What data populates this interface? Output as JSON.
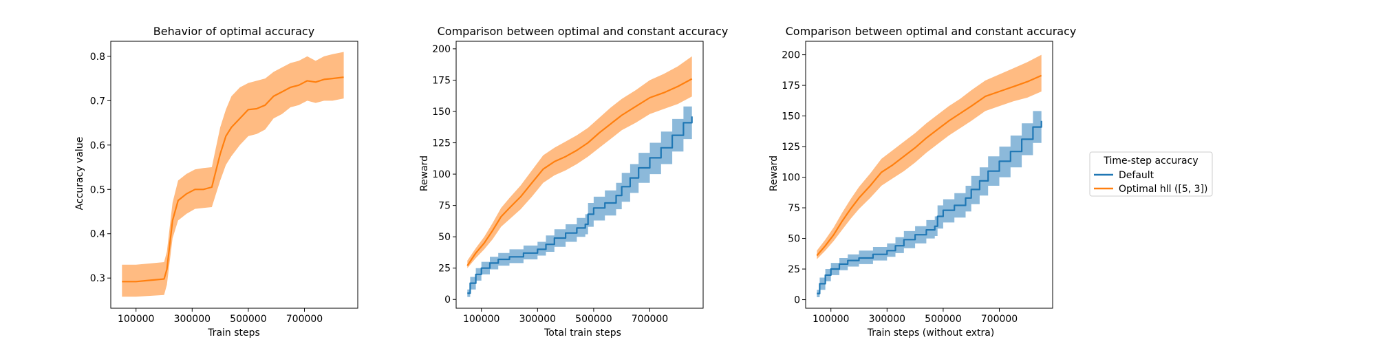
{
  "chart_data": [
    {
      "type": "line",
      "title": "Behavior of optimal accuracy",
      "xlabel": "Train steps",
      "ylabel": "Accuracy value",
      "xlim": [
        10000,
        890000
      ],
      "ylim": [
        0.232,
        0.834
      ],
      "xticks": [
        100000,
        300000,
        500000,
        700000
      ],
      "xtick_labels": [
        "100000",
        "300000",
        "500000",
        "700000"
      ],
      "yticks": [
        0.3,
        0.4,
        0.5,
        0.6,
        0.7,
        0.8
      ],
      "ytick_labels": [
        "0.3",
        "0.4",
        "0.5",
        "0.6",
        "0.7",
        "0.8"
      ],
      "grid": false,
      "series": [
        {
          "color": "#ff7f0e",
          "band_color": "#ffbb82",
          "x": [
            50000,
            100000,
            150000,
            200000,
            210000,
            230000,
            250000,
            280000,
            310000,
            340000,
            370000,
            380000,
            400000,
            420000,
            440000,
            470000,
            500000,
            530000,
            560000,
            590000,
            620000,
            650000,
            680000,
            710000,
            740000,
            770000,
            800000,
            840000
          ],
          "y": [
            0.292,
            0.292,
            0.295,
            0.298,
            0.32,
            0.43,
            0.475,
            0.49,
            0.5,
            0.5,
            0.505,
            0.53,
            0.58,
            0.62,
            0.64,
            0.66,
            0.68,
            0.682,
            0.69,
            0.71,
            0.72,
            0.73,
            0.735,
            0.745,
            0.742,
            0.748,
            0.75,
            0.753
          ],
          "lower": [
            0.258,
            0.258,
            0.26,
            0.262,
            0.285,
            0.39,
            0.43,
            0.445,
            0.456,
            0.458,
            0.46,
            0.48,
            0.52,
            0.555,
            0.575,
            0.6,
            0.62,
            0.625,
            0.635,
            0.66,
            0.67,
            0.685,
            0.69,
            0.7,
            0.695,
            0.7,
            0.7,
            0.705
          ],
          "upper": [
            0.33,
            0.33,
            0.333,
            0.336,
            0.36,
            0.47,
            0.52,
            0.535,
            0.545,
            0.548,
            0.55,
            0.58,
            0.64,
            0.68,
            0.71,
            0.73,
            0.74,
            0.745,
            0.75,
            0.765,
            0.775,
            0.785,
            0.79,
            0.8,
            0.79,
            0.8,
            0.805,
            0.81
          ]
        }
      ]
    },
    {
      "type": "line",
      "title": "Comparison between optimal and constant accuracy",
      "xlabel": "Total train steps",
      "ylabel": "Reward",
      "xlim": [
        10000,
        890000
      ],
      "ylim": [
        -7,
        206
      ],
      "xticks": [
        100000,
        300000,
        500000,
        700000
      ],
      "xtick_labels": [
        "100000",
        "300000",
        "500000",
        "700000"
      ],
      "yticks": [
        0,
        25,
        50,
        75,
        100,
        125,
        150,
        175,
        200
      ],
      "ytick_labels": [
        "0",
        "25",
        "50",
        "75",
        "100",
        "125",
        "150",
        "175",
        "200"
      ],
      "grid": false,
      "series": [
        {
          "name": "Default",
          "color": "#1f77b4",
          "band_color": "#8cb9da",
          "step": true,
          "x": [
            50000,
            60000,
            80000,
            100000,
            130000,
            160000,
            200000,
            250000,
            300000,
            330000,
            360000,
            400000,
            440000,
            470000,
            480000,
            500000,
            540000,
            580000,
            600000,
            630000,
            660000,
            700000,
            740000,
            780000,
            820000,
            850000
          ],
          "y": [
            5,
            13,
            20,
            25,
            29,
            32,
            34,
            37,
            40,
            44,
            49,
            53,
            57,
            60,
            68,
            73,
            77,
            83,
            90,
            97,
            105,
            113,
            121,
            131,
            141,
            146
          ],
          "lower": [
            2,
            8,
            15,
            20,
            24,
            27,
            29,
            32,
            35,
            38,
            42,
            46,
            50,
            52,
            58,
            63,
            67,
            72,
            78,
            85,
            93,
            100,
            108,
            118,
            128,
            133
          ],
          "upper": [
            8,
            18,
            25,
            30,
            34,
            37,
            40,
            43,
            46,
            51,
            56,
            60,
            65,
            68,
            77,
            82,
            87,
            93,
            101,
            108,
            117,
            125,
            134,
            144,
            154,
            160
          ]
        },
        {
          "name": "Optimal hll ([5, 3])",
          "color": "#ff7f0e",
          "band_color": "#ffbb82",
          "step": false,
          "x": [
            50000,
            80000,
            110000,
            140000,
            170000,
            200000,
            240000,
            280000,
            320000,
            360000,
            400000,
            440000,
            480000,
            520000,
            560000,
            600000,
            650000,
            700000,
            750000,
            800000,
            850000
          ],
          "y": [
            27,
            37,
            45,
            55,
            66,
            73,
            82,
            93,
            104,
            110,
            114,
            119,
            125,
            133,
            140,
            147,
            154,
            161,
            165,
            170,
            176
          ],
          "lower": [
            25,
            33,
            40,
            48,
            58,
            64,
            72,
            82,
            93,
            99,
            103,
            108,
            114,
            121,
            128,
            135,
            141,
            148,
            152,
            156,
            162
          ],
          "upper": [
            31,
            41,
            50,
            61,
            73,
            81,
            91,
            103,
            115,
            121,
            126,
            131,
            137,
            145,
            153,
            160,
            167,
            175,
            180,
            186,
            194
          ]
        }
      ]
    },
    {
      "type": "line",
      "title": "Comparison between optimal and constant accuracy",
      "xlabel": "Train steps (without extra)",
      "ylabel": "Reward",
      "xlim": [
        10000,
        890000
      ],
      "ylim": [
        -7,
        211
      ],
      "xticks": [
        100000,
        300000,
        500000,
        700000
      ],
      "xtick_labels": [
        "100000",
        "300000",
        "500000",
        "700000"
      ],
      "yticks": [
        0,
        25,
        50,
        75,
        100,
        125,
        150,
        175,
        200
      ],
      "ytick_labels": [
        "0",
        "25",
        "50",
        "75",
        "100",
        "125",
        "150",
        "175",
        "200"
      ],
      "grid": false,
      "series": [
        {
          "name": "Default",
          "color": "#1f77b4",
          "band_color": "#8cb9da",
          "step": true,
          "x": [
            50000,
            60000,
            80000,
            100000,
            130000,
            160000,
            200000,
            250000,
            300000,
            330000,
            360000,
            400000,
            440000,
            470000,
            480000,
            500000,
            540000,
            580000,
            600000,
            630000,
            660000,
            700000,
            740000,
            780000,
            820000,
            850000
          ],
          "y": [
            5,
            13,
            20,
            25,
            29,
            32,
            34,
            37,
            40,
            44,
            49,
            53,
            57,
            60,
            68,
            73,
            77,
            83,
            90,
            97,
            105,
            113,
            121,
            131,
            141,
            146
          ],
          "lower": [
            2,
            8,
            15,
            20,
            24,
            27,
            29,
            32,
            35,
            38,
            42,
            46,
            50,
            52,
            58,
            63,
            67,
            72,
            78,
            85,
            93,
            100,
            108,
            118,
            128,
            133
          ],
          "upper": [
            8,
            18,
            25,
            30,
            34,
            37,
            40,
            43,
            46,
            51,
            56,
            60,
            65,
            68,
            77,
            82,
            87,
            93,
            101,
            108,
            117,
            125,
            134,
            144,
            154,
            160
          ]
        },
        {
          "name": "Optimal hll ([5, 3])",
          "color": "#ff7f0e",
          "band_color": "#ffbb82",
          "step": false,
          "x": [
            50000,
            80000,
            110000,
            140000,
            170000,
            200000,
            240000,
            280000,
            320000,
            360000,
            400000,
            440000,
            480000,
            520000,
            560000,
            600000,
            650000,
            700000,
            750000,
            800000,
            850000
          ],
          "y": [
            36,
            44,
            53,
            64,
            74,
            83,
            93,
            104,
            110,
            117,
            124,
            132,
            139,
            146,
            152,
            158,
            166,
            170,
            174,
            178,
            183
          ],
          "lower": [
            33,
            40,
            48,
            57,
            66,
            74,
            83,
            93,
            99,
            105,
            112,
            120,
            127,
            134,
            140,
            146,
            154,
            158,
            162,
            165,
            170
          ],
          "upper": [
            40,
            49,
            59,
            71,
            82,
            92,
            103,
            115,
            122,
            129,
            136,
            144,
            151,
            158,
            164,
            171,
            179,
            184,
            189,
            194,
            200
          ]
        }
      ]
    }
  ],
  "legend": {
    "title": "Time-step accuracy",
    "entries": [
      {
        "label": "Default",
        "color": "#1f77b4"
      },
      {
        "label": "Optimal hll ([5, 3])",
        "color": "#ff7f0e"
      }
    ]
  }
}
